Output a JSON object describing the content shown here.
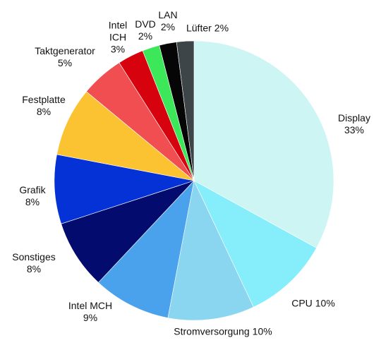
{
  "chart_data": {
    "type": "pie",
    "categories": [
      "Display",
      "CPU",
      "Stromversorgung",
      "Intel MCH",
      "Sonstiges",
      "Grafik",
      "Festplatte",
      "Taktgenerator",
      "Intel ICH",
      "DVD",
      "LAN",
      "Lüfter"
    ],
    "values": [
      33,
      10,
      10,
      9,
      8,
      8,
      8,
      5,
      3,
      2,
      2,
      2
    ],
    "value_labels": [
      "33%",
      "10%",
      "10%",
      "9%",
      "8%",
      "8%",
      "8%",
      "5%",
      "3%",
      "2%",
      "2%",
      "2%"
    ],
    "colors": [
      "#cdf5f4",
      "#86eefa",
      "#8ad6f0",
      "#4aa2ec",
      "#030b6e",
      "#0432d6",
      "#fbc232",
      "#f04e50",
      "#d6020e",
      "#3ce85a",
      "#060606",
      "#3e4548"
    ]
  }
}
